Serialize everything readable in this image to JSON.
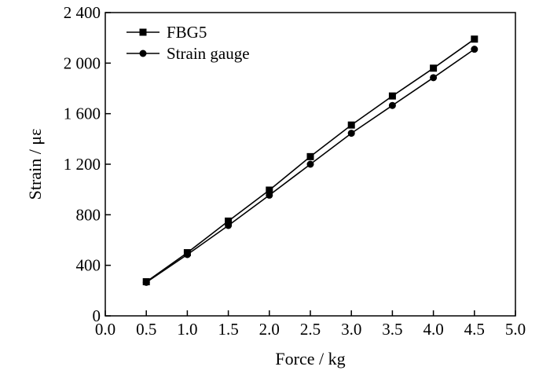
{
  "chart_data": {
    "type": "line",
    "title": "",
    "xlabel": "Force / kg",
    "ylabel": "Strain / με",
    "xlim": [
      0.0,
      5.0
    ],
    "ylim": [
      0,
      2400
    ],
    "xticks": [
      "0.0",
      "0.5",
      "1.0",
      "1.5",
      "2.0",
      "2.5",
      "3.0",
      "3.5",
      "4.0",
      "4.5",
      "5.0"
    ],
    "yticks": [
      "0",
      "400",
      "800",
      "1 200",
      "1 600",
      "2 000",
      "2 400"
    ],
    "grid": false,
    "legend_position": "top-left",
    "x": [
      0.5,
      1.0,
      1.5,
      2.0,
      2.5,
      3.0,
      3.5,
      4.0,
      4.5
    ],
    "series": [
      {
        "name": "FBG5",
        "marker": "square",
        "color": "#000000",
        "values": [
          270,
          500,
          750,
          995,
          1260,
          1510,
          1740,
          1960,
          2190
        ]
      },
      {
        "name": "Strain gauge",
        "marker": "circle",
        "color": "#000000",
        "values": [
          265,
          485,
          715,
          955,
          1200,
          1445,
          1665,
          1885,
          2110
        ]
      }
    ]
  }
}
